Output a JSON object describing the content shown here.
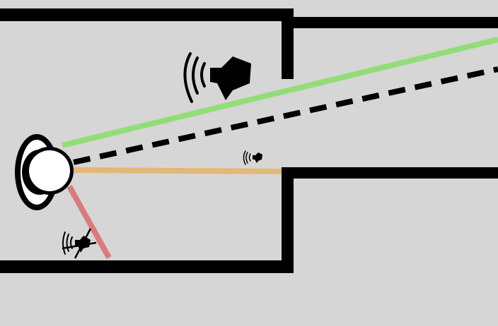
{
  "colors": {
    "background": "#d6d6d6",
    "wall": "#000000",
    "direct_path": "#000000",
    "clear_path": "#93dd78",
    "muffled_path": "#e2b877",
    "blocked_path": "#da7b7b",
    "listener_fill": "#ffffff",
    "listener_outline": "#000000"
  },
  "elements": {
    "listener": {
      "icon": "listener-head-icon"
    },
    "direct_line": {
      "style": "dashed"
    },
    "paths": [
      {
        "name": "clear-sound-path",
        "color_key": "clear_path",
        "volume_icon": "speaker-loud-icon",
        "state": "audible"
      },
      {
        "name": "muffled-sound-path",
        "color_key": "muffled_path",
        "volume_icon": "speaker-quiet-icon",
        "state": "attenuated"
      },
      {
        "name": "blocked-sound-path",
        "color_key": "blocked_path",
        "volume_icon": "speaker-muted-icon",
        "state": "blocked"
      }
    ]
  }
}
